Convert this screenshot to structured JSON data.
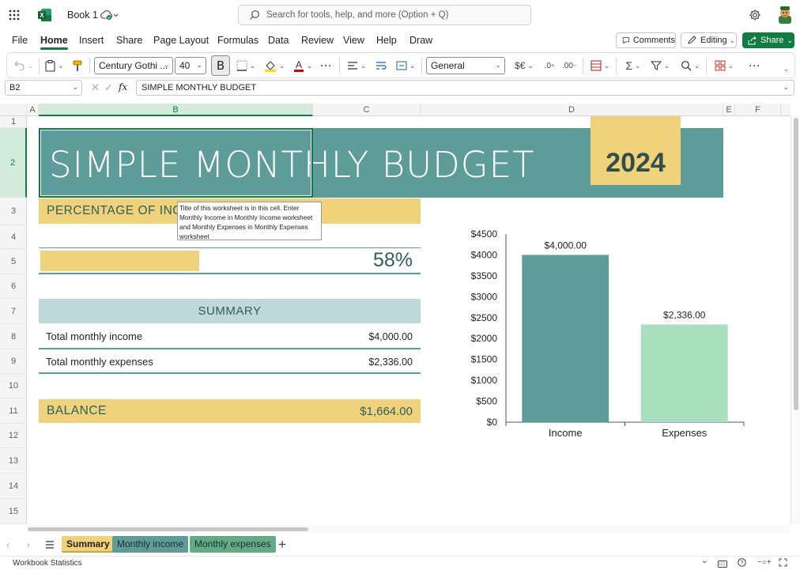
{
  "app": {
    "doc_title": "Book 1",
    "search_placeholder": "Search for tools, help, and more (Option + Q)"
  },
  "menu": {
    "tabs": [
      "File",
      "Home",
      "Insert",
      "Share",
      "Page Layout",
      "Formulas",
      "Data",
      "Review",
      "View",
      "Help",
      "Draw"
    ],
    "active": "Home",
    "comments_label": "Comments",
    "editing_label": "Editing",
    "share_label": "Share"
  },
  "ribbon": {
    "font_name": "Century Gothi ...",
    "font_size": "40",
    "bold_label": "B",
    "number_format": "General",
    "currency_symbol": "$€"
  },
  "formula_bar": {
    "name_box": "B2",
    "fx": "fx",
    "content": "SIMPLE MONTHLY BUDGET"
  },
  "grid": {
    "columns": [
      "A",
      "B",
      "C",
      "D",
      "E",
      "F"
    ],
    "rows": [
      "1",
      "2",
      "3",
      "4",
      "5",
      "6",
      "7",
      "8",
      "9",
      "10",
      "11",
      "12",
      "13",
      "14",
      "15"
    ]
  },
  "sheet": {
    "title": "SIMPLE MONTHLY BUDGET",
    "year": "2024",
    "percentage_label": "PERCENTAGE OF INCOME SPENT",
    "percentage_value": "58%",
    "percentage_fraction": 0.58,
    "summary_header": "SUMMARY",
    "income_label": "Total monthly income",
    "income_value": "$4,000.00",
    "expenses_label": "Total monthly expenses",
    "expenses_value": "$2,336.00",
    "balance_label": "BALANCE",
    "balance_value": "$1,664.00"
  },
  "tooltip": {
    "text": "Title of this worksheet is in this cell. Enter Monthly Income in Monthly Income worksheet and Monthly Expenses in Monthly Expenses worksheet"
  },
  "chart_data": {
    "type": "bar",
    "categories": [
      "Income",
      "Expenses"
    ],
    "values": [
      4000,
      2336
    ],
    "data_labels": [
      "$4,000.00",
      "$2,336.00"
    ],
    "ylim": [
      0,
      4500
    ],
    "y_ticks": [
      "$0",
      "$500",
      "$1000",
      "$1500",
      "$2000",
      "$2500",
      "$3000",
      "$3500",
      "$4000",
      "$4500"
    ],
    "colors": [
      "#5e9c9a",
      "#a8e0bf"
    ],
    "grid": false
  },
  "tabs_bar": {
    "sheets": [
      "Summary",
      "Monthly income",
      "Monthly expenses"
    ],
    "active": "Summary"
  },
  "status": {
    "left": "Workbook Statistics"
  },
  "colors": {
    "teal": "#5e9c9a",
    "gold": "#f0d27a",
    "light_teal": "#bfd9da",
    "excel_green": "#107c41"
  }
}
